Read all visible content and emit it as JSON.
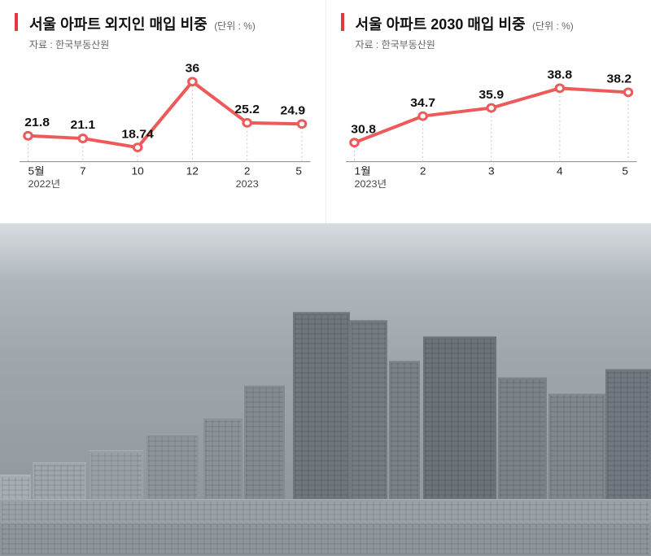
{
  "left_chart": {
    "type": "line",
    "title": "서울 아파트 외지인 매입 비중",
    "unit": "(단위 : %)",
    "source": "자료 : 한국부동산원",
    "accent_color": "#e2383f",
    "line_color": "#ed5a5a",
    "line_width": 4,
    "marker_fill": "#ffffff",
    "marker_stroke": "#ed5a5a",
    "marker_radius_outer": 6,
    "marker_radius_inner": 3,
    "grid_color": "#c9c9c9",
    "background_color": "#ffffff",
    "title_fontsize": 18,
    "label_fontsize": 15,
    "axis_fontsize": 13,
    "ylim": [
      15,
      40
    ],
    "x_labels": [
      "5월",
      "7",
      "10",
      "12",
      "2",
      "5"
    ],
    "x_year_primary": "2022년",
    "x_year_secondary": "2023",
    "x_year_secondary_index": 4,
    "values": [
      21.8,
      21.1,
      18.74,
      36.0,
      25.2,
      24.9
    ]
  },
  "right_chart": {
    "type": "line",
    "title": "서울 아파트 2030 매입 비중",
    "unit": "(단위 : %)",
    "source": "자료 : 한국부동산원",
    "accent_color": "#e2383f",
    "line_color": "#ed5a5a",
    "line_width": 4,
    "marker_fill": "#ffffff",
    "marker_stroke": "#ed5a5a",
    "marker_radius_outer": 6,
    "marker_radius_inner": 3,
    "grid_color": "#c9c9c9",
    "background_color": "#ffffff",
    "title_fontsize": 18,
    "label_fontsize": 15,
    "axis_fontsize": 13,
    "ylim": [
      28,
      42
    ],
    "x_labels": [
      "1월",
      "2",
      "3",
      "4",
      "5"
    ],
    "x_year_primary": "2023년",
    "values": [
      30.8,
      34.7,
      35.9,
      38.8,
      38.2
    ]
  },
  "photo": {
    "description": "hazy city skyline with dense apartment buildings",
    "sky_color_top": "#d8dde0",
    "sky_color_bottom": "#8a9298"
  }
}
